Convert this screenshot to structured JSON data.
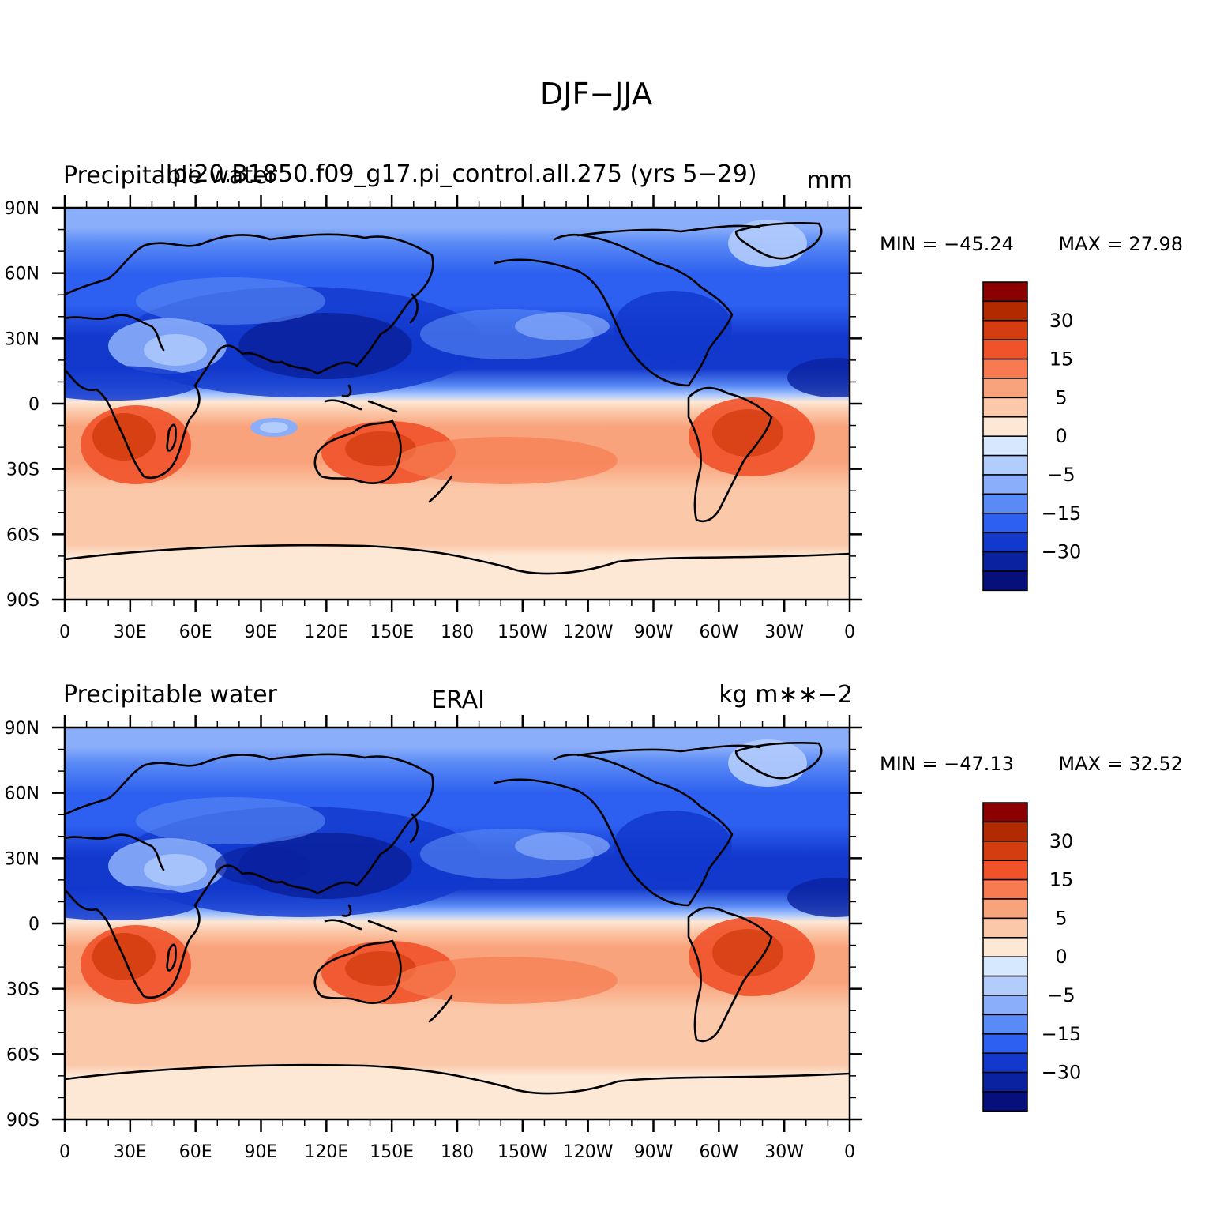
{
  "figure": {
    "title": "DJF−JJA"
  },
  "axes": {
    "lat_ticks": [
      "90N",
      "60N",
      "30N",
      "0",
      "30S",
      "60S",
      "90S"
    ],
    "lon_ticks": [
      "0",
      "30E",
      "60E",
      "90E",
      "120E",
      "150E",
      "180",
      "150W",
      "120W",
      "90W",
      "60W",
      "30W",
      "0"
    ]
  },
  "colorbar": {
    "labels": [
      "30",
      "15",
      "5",
      "0",
      "−5",
      "−15",
      "−30"
    ],
    "colors": [
      "#8b0000",
      "#b22a00",
      "#d43d10",
      "#f0522a",
      "#f77a50",
      "#f9a37c",
      "#fbc9aa",
      "#fde8d6",
      "#d6e8fd",
      "#b2ccfc",
      "#8aaefa",
      "#5a8af5",
      "#2d5ff0",
      "#1238cc",
      "#0a22a0",
      "#070f7a"
    ]
  },
  "panels": [
    {
      "id": "model",
      "left_title": "Precipitable water",
      "center_title": "lipi20.B1850.f09_g17.pi_control.all.275 (yrs 5−29)",
      "right_title": "mm",
      "min_label": "MIN = −45.24",
      "max_label": "MAX =   27.98"
    },
    {
      "id": "erai",
      "left_title": "Precipitable water",
      "center_title": "ERAI",
      "right_title": "kg m∗∗−2",
      "min_label": "MIN = −47.13",
      "max_label": "MAX =   32.52"
    }
  ],
  "chart_data": {
    "type": "heatmap",
    "projection": "cylindrical equidistant",
    "variable": "Precipitable water",
    "season_difference": "DJF−JJA",
    "x_range": [
      "0",
      "360 (0)"
    ],
    "y_range": [
      "90S",
      "90N"
    ],
    "contour_levels": [
      -40,
      -30,
      -25,
      -20,
      -15,
      -10,
      -5,
      -2,
      0,
      2,
      5,
      10,
      15,
      20,
      30,
      40
    ],
    "panels": [
      {
        "source": "lipi20.B1850.f09_g17.pi_control.all.275 (yrs 5−29)",
        "units": "mm",
        "min": -45.24,
        "max": 27.98
      },
      {
        "source": "ERAI",
        "units": "kg m**-2",
        "min": -47.13,
        "max": 32.52
      }
    ]
  }
}
